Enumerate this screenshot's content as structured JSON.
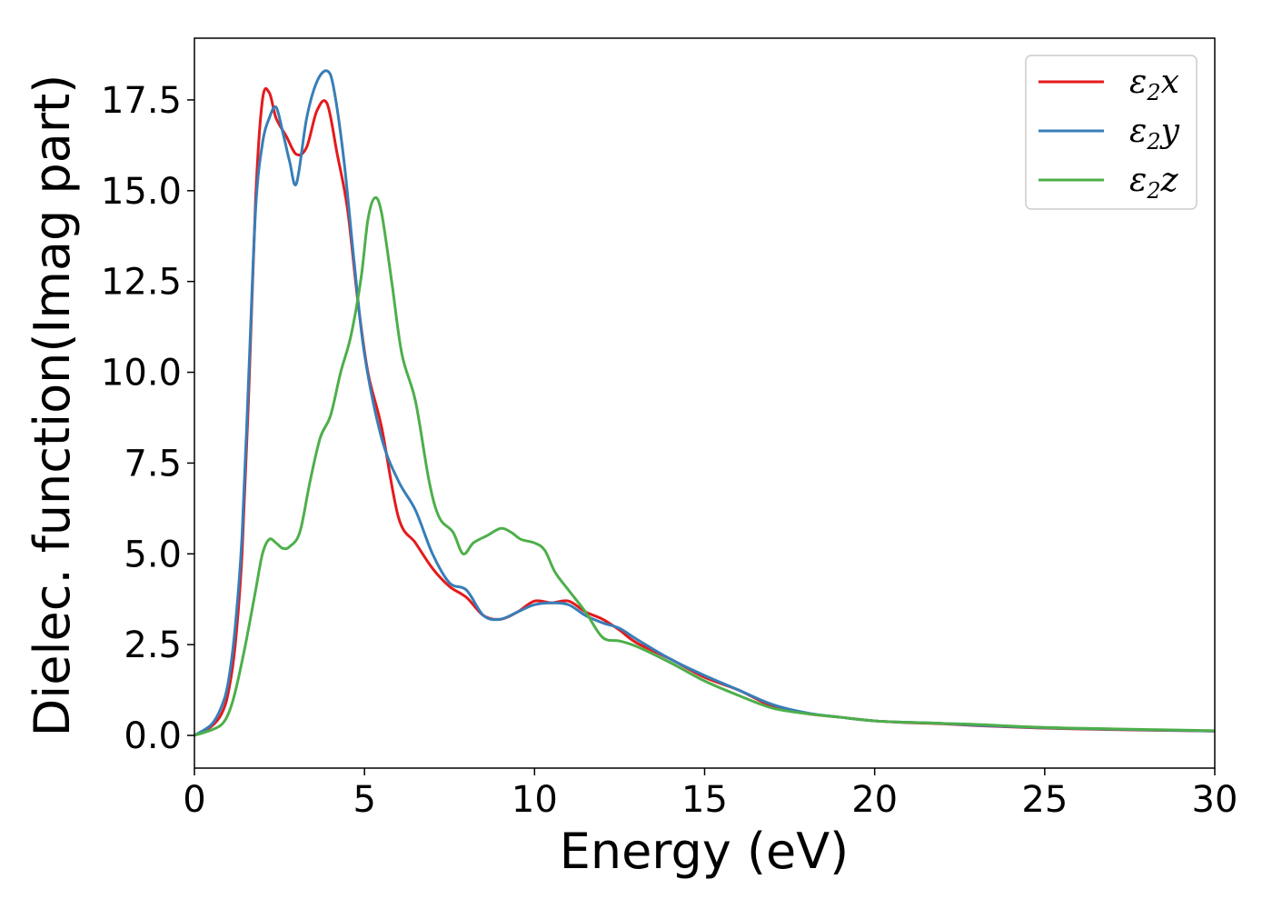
{
  "chart_data": {
    "type": "line",
    "title": "",
    "xlabel": "Energy (eV)",
    "ylabel": "Dielec. function(Imag part)",
    "xlim": [
      0,
      30
    ],
    "ylim": [
      -0.9,
      19.2
    ],
    "xticks": [
      0,
      5,
      10,
      15,
      20,
      25,
      30
    ],
    "xtick_labels": [
      "0",
      "5",
      "10",
      "15",
      "20",
      "25",
      "30"
    ],
    "yticks": [
      0,
      2.5,
      5,
      7.5,
      10,
      12.5,
      15,
      17.5
    ],
    "ytick_labels": [
      "0.0",
      "2.5",
      "5.0",
      "7.5",
      "10.0",
      "12.5",
      "15.0",
      "17.5"
    ],
    "grid": false,
    "legend_position": "top-right",
    "series": [
      {
        "name": "ε2x",
        "legend_base": "ε",
        "legend_sub": "2",
        "legend_tail": "x",
        "color": "#e41a1c",
        "x": [
          0,
          0.5,
          0.8,
          1.0,
          1.2,
          1.4,
          1.6,
          1.8,
          2.0,
          2.2,
          2.4,
          2.7,
          3.0,
          3.3,
          3.6,
          3.9,
          4.2,
          4.5,
          4.8,
          5.1,
          5.5,
          6.0,
          6.5,
          7.0,
          7.5,
          8.0,
          8.5,
          9.0,
          9.5,
          10.0,
          10.5,
          11.0,
          11.5,
          12.0,
          12.5,
          13.0,
          14.0,
          15.0,
          16.0,
          17.0,
          18.0,
          19.0,
          20.0,
          21.0,
          22.0,
          23.0,
          25.0,
          27.0,
          30.0
        ],
        "values": [
          0,
          0.25,
          0.6,
          1.2,
          2.5,
          5.0,
          9.5,
          14.8,
          17.5,
          17.7,
          17.0,
          16.5,
          16.0,
          16.2,
          17.2,
          17.4,
          16.0,
          14.5,
          12.0,
          10.0,
          8.5,
          6.0,
          5.3,
          4.6,
          4.1,
          3.8,
          3.3,
          3.2,
          3.4,
          3.7,
          3.65,
          3.7,
          3.4,
          3.2,
          2.9,
          2.55,
          2.1,
          1.6,
          1.25,
          0.8,
          0.6,
          0.5,
          0.4,
          0.35,
          0.32,
          0.27,
          0.2,
          0.16,
          0.12
        ]
      },
      {
        "name": "ε2y",
        "legend_base": "ε",
        "legend_sub": "2",
        "legend_tail": "y",
        "color": "#377eb8",
        "x": [
          0,
          0.5,
          0.8,
          1.0,
          1.2,
          1.4,
          1.6,
          1.8,
          2.0,
          2.2,
          2.4,
          2.6,
          2.8,
          3.0,
          3.3,
          3.6,
          3.9,
          4.1,
          4.4,
          4.7,
          5.0,
          5.5,
          6.0,
          6.5,
          7.0,
          7.5,
          8.0,
          8.5,
          9.0,
          9.5,
          10.0,
          10.5,
          11.0,
          11.5,
          12.0,
          12.5,
          13.0,
          14.0,
          15.0,
          16.0,
          17.0,
          18.0,
          19.0,
          20.0,
          21.0,
          22.0,
          23.0,
          25.0,
          27.0,
          30.0
        ],
        "values": [
          0,
          0.3,
          0.8,
          1.5,
          3.0,
          5.5,
          10.0,
          14.5,
          16.3,
          17.0,
          17.3,
          16.6,
          15.8,
          15.2,
          17.0,
          18.0,
          18.3,
          17.8,
          15.8,
          13.0,
          10.5,
          8.2,
          7.0,
          6.2,
          5.0,
          4.2,
          4.0,
          3.3,
          3.2,
          3.4,
          3.6,
          3.65,
          3.6,
          3.3,
          3.1,
          2.95,
          2.65,
          2.1,
          1.65,
          1.25,
          0.85,
          0.62,
          0.5,
          0.4,
          0.36,
          0.33,
          0.28,
          0.21,
          0.17,
          0.12
        ]
      },
      {
        "name": "ε2z",
        "legend_base": "ε",
        "legend_sub": "2",
        "legend_tail": "z",
        "color": "#4daf4a",
        "x": [
          0,
          0.5,
          0.8,
          1.0,
          1.2,
          1.5,
          1.8,
          2.0,
          2.2,
          2.4,
          2.6,
          2.8,
          3.1,
          3.4,
          3.7,
          4.0,
          4.3,
          4.6,
          4.9,
          5.1,
          5.3,
          5.5,
          5.8,
          6.1,
          6.5,
          6.9,
          7.2,
          7.6,
          7.9,
          8.2,
          8.6,
          9.0,
          9.3,
          9.6,
          10.0,
          10.3,
          10.6,
          11.0,
          11.5,
          12.0,
          12.5,
          13.0,
          14.0,
          15.0,
          16.0,
          17.0,
          18.0,
          19.0,
          20.0,
          21.0,
          22.0,
          23.0,
          25.0,
          27.0,
          30.0
        ],
        "values": [
          0,
          0.15,
          0.3,
          0.6,
          1.2,
          2.5,
          4.0,
          5.0,
          5.4,
          5.3,
          5.15,
          5.2,
          5.6,
          7.0,
          8.2,
          8.8,
          10.0,
          11.0,
          12.6,
          14.2,
          14.8,
          14.4,
          12.5,
          10.5,
          9.2,
          7.0,
          6.0,
          5.6,
          5.0,
          5.3,
          5.5,
          5.7,
          5.6,
          5.4,
          5.3,
          5.1,
          4.5,
          4.0,
          3.4,
          2.7,
          2.6,
          2.45,
          2.0,
          1.5,
          1.1,
          0.75,
          0.6,
          0.5,
          0.4,
          0.36,
          0.33,
          0.3,
          0.22,
          0.18,
          0.13
        ]
      }
    ]
  }
}
